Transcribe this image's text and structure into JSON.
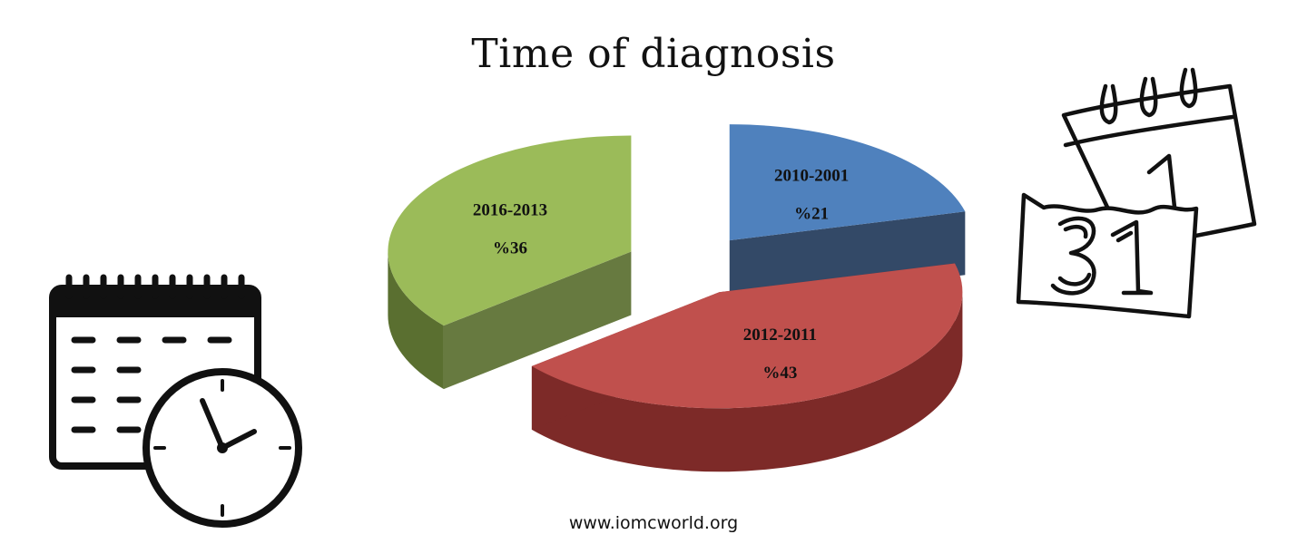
{
  "chart_data": {
    "type": "pie",
    "title": "Time of diagnosis",
    "categories": [
      "2010-2001",
      "2012-2011",
      "2016-2013"
    ],
    "values": [
      21,
      43,
      36
    ],
    "value_labels": [
      "%21",
      "%43",
      "%36"
    ],
    "colors": {
      "top": [
        "#4f81bd",
        "#c0504d",
        "#9bbb59"
      ],
      "side": [
        "#22395a",
        "#7d2a28",
        "#5a6f30"
      ]
    },
    "legend": "none",
    "style": "3d-exploded"
  },
  "footer": {
    "source": "www.iomcworld.org"
  },
  "icons": [
    "calendar-clock-icon",
    "tear-off-calendar-icon"
  ]
}
